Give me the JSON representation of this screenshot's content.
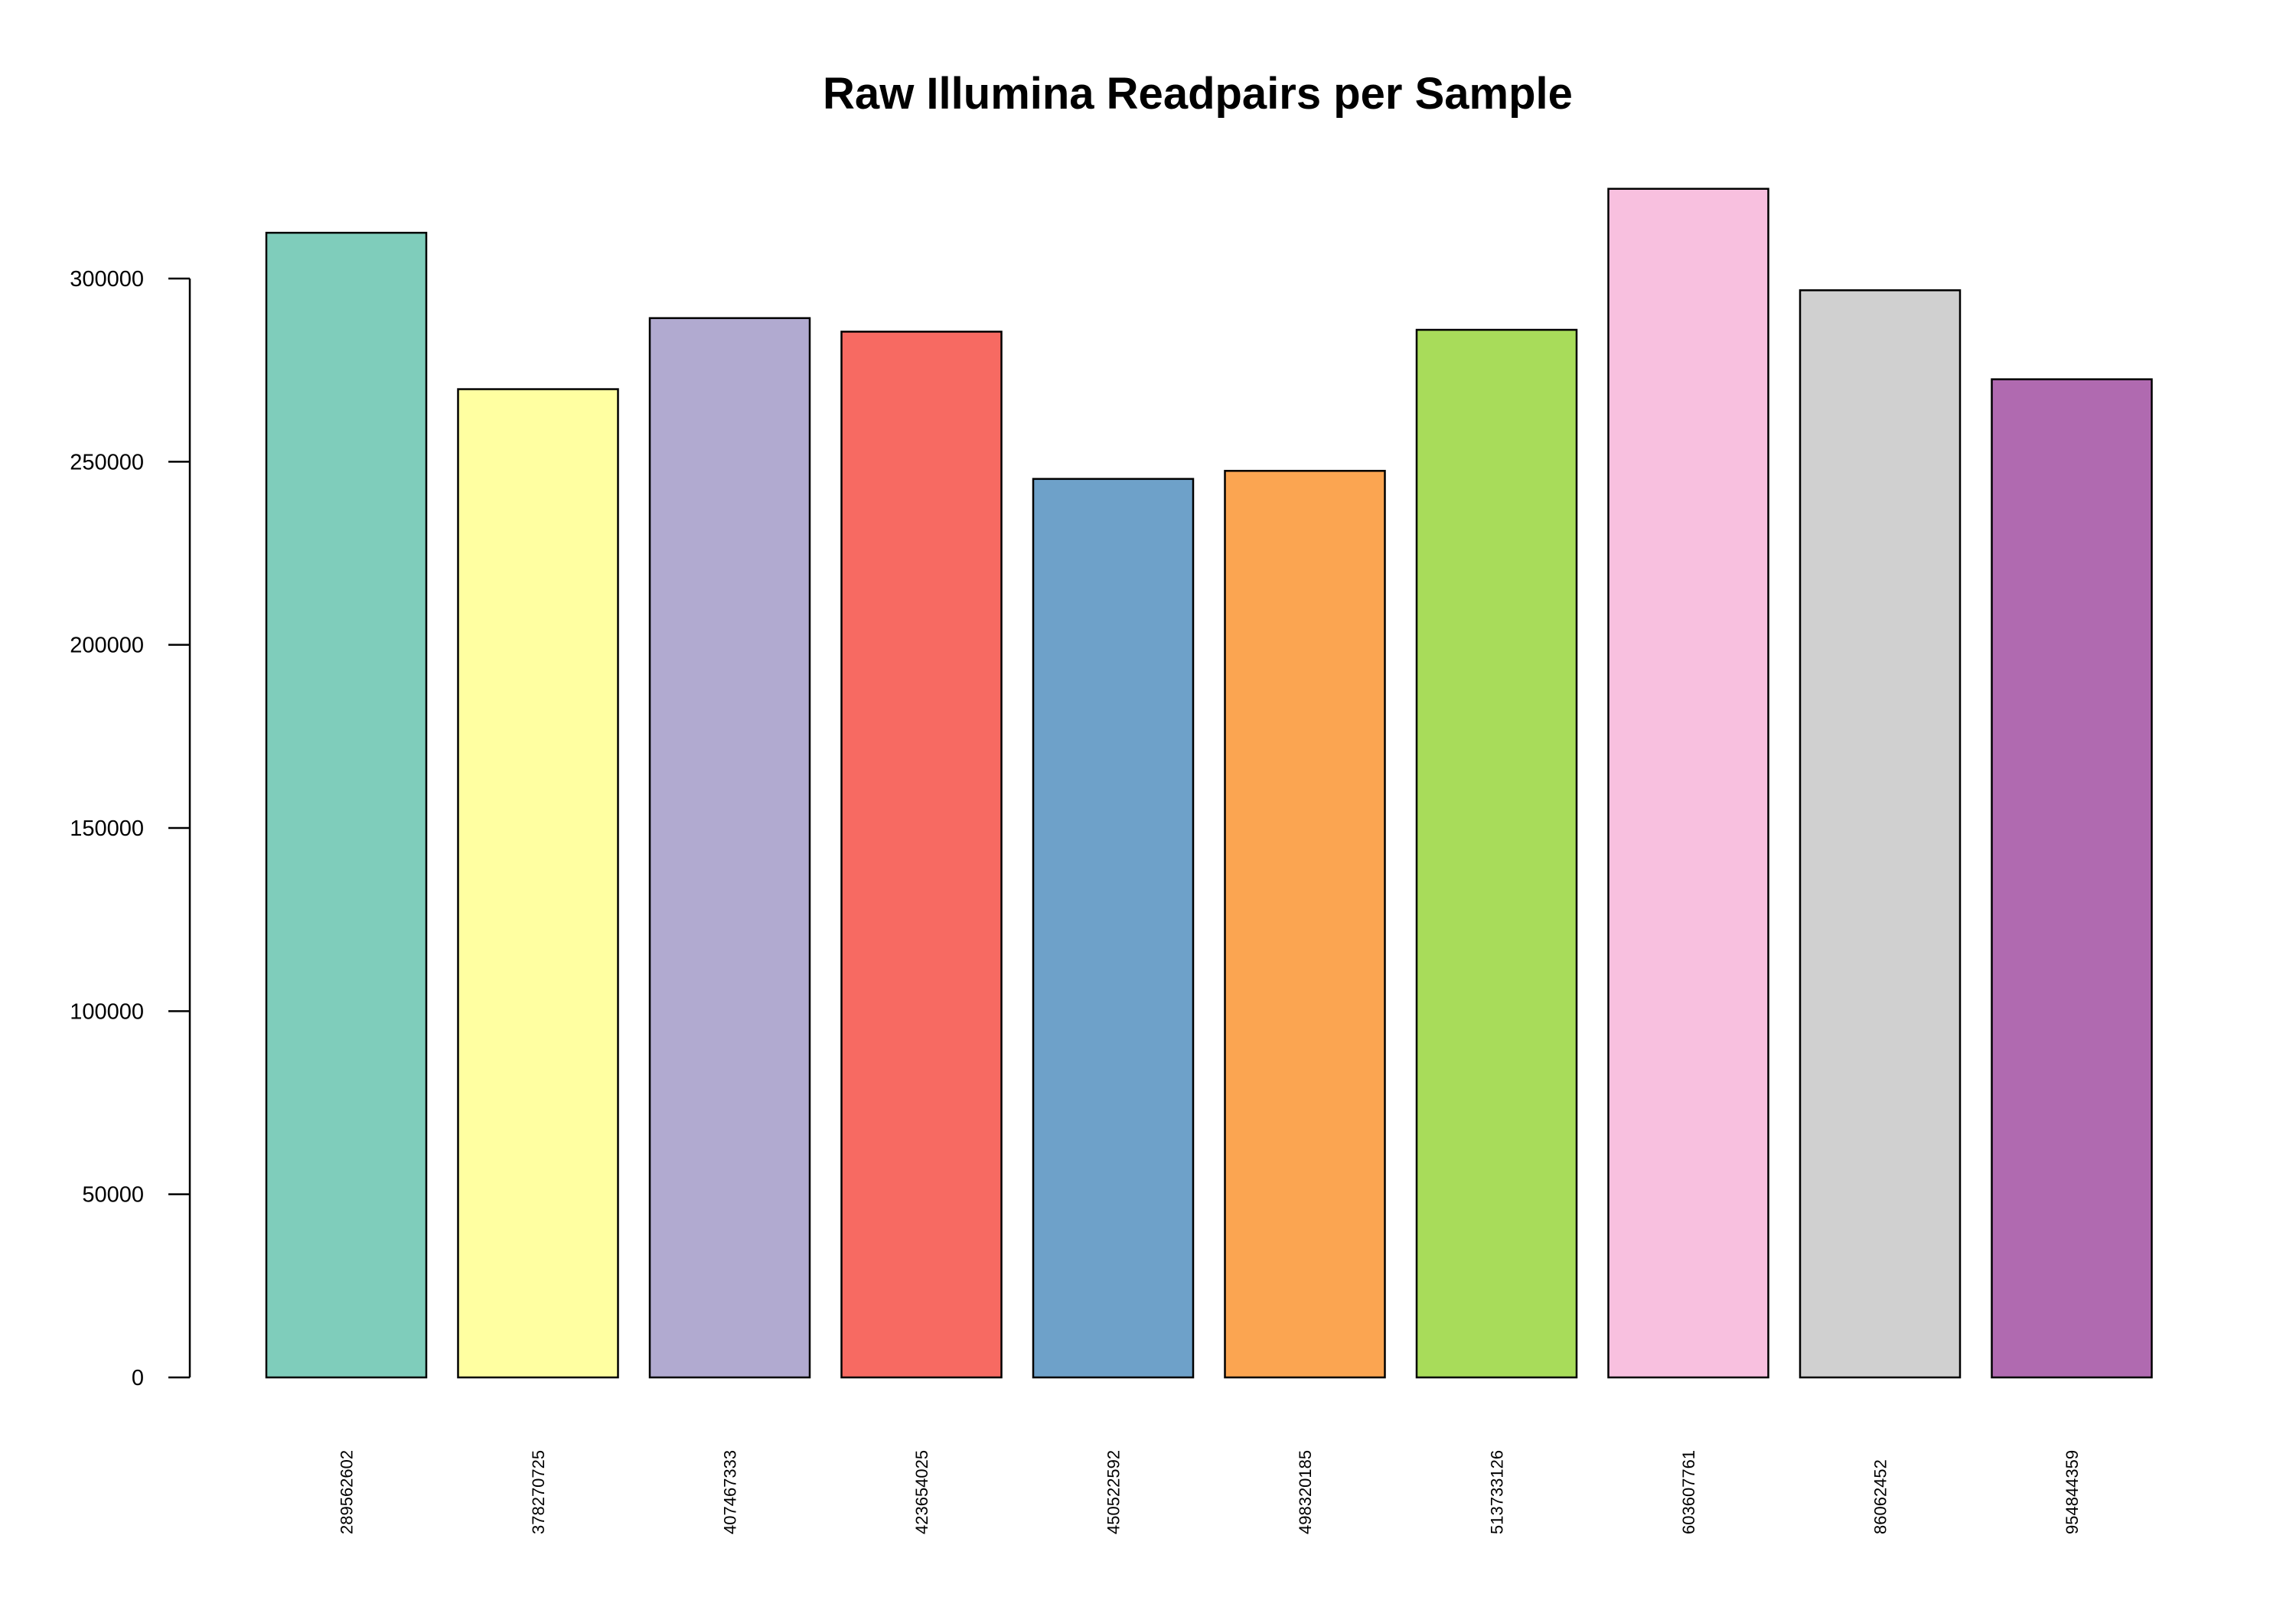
{
  "chart_data": {
    "type": "bar",
    "title": "Raw Illumina Readpairs per Sample",
    "xlabel": "",
    "ylabel": "",
    "categories": [
      "289562602",
      "378270725",
      "407467333",
      "423654025",
      "450522592",
      "498320185",
      "513733126",
      "603607761",
      "86062452",
      "954844359"
    ],
    "values": [
      312500,
      269800,
      289200,
      285500,
      245300,
      247500,
      286000,
      324500,
      296800,
      272500
    ],
    "colors": [
      "#7FCDBB",
      "#FFFFA1",
      "#B1AAD0",
      "#F76A62",
      "#6EA1C9",
      "#FBA551",
      "#A8DC5A",
      "#F8C0DF",
      "#D0D0D0",
      "#B06AB0"
    ],
    "ylim": [
      0,
      300000
    ],
    "yticks": [
      0,
      50000,
      100000,
      150000,
      200000,
      250000,
      300000
    ],
    "ytick_labels": [
      "0",
      "50000",
      "100000",
      "150000",
      "200000",
      "250000",
      "300000"
    ],
    "grid": false,
    "legend": "none",
    "x_tick_orientation": "vertical"
  }
}
